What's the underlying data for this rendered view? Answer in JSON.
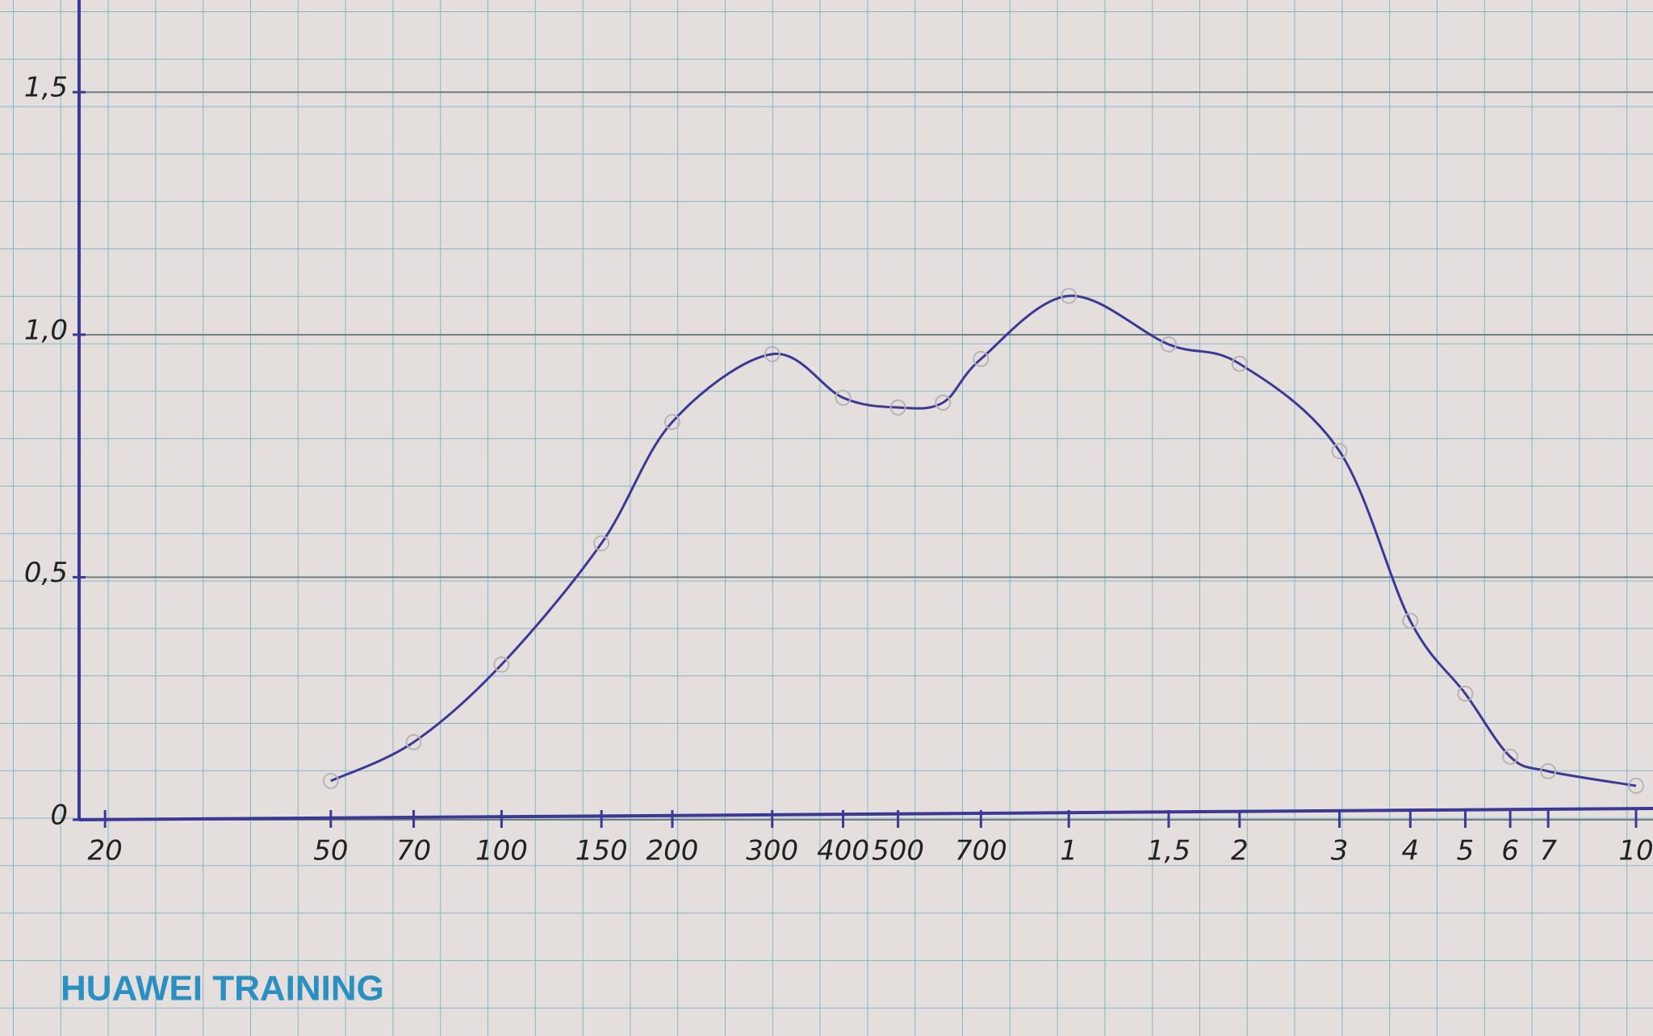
{
  "chart_data": {
    "type": "line",
    "annotation": "HUAWEI TRAINING",
    "x": [
      50,
      70,
      100,
      150,
      200,
      300,
      400,
      500,
      600,
      700,
      1000,
      1500,
      2000,
      3000,
      4000,
      5000,
      6000,
      7000,
      10000
    ],
    "series": [
      {
        "color": "#3b3896",
        "values": [
          0.08,
          0.16,
          0.32,
          0.57,
          0.82,
          0.96,
          0.87,
          0.85,
          0.86,
          0.95,
          1.08,
          0.98,
          0.94,
          0.76,
          0.41,
          0.26,
          0.13,
          0.1,
          0.07
        ]
      }
    ],
    "xscale": "log",
    "xlim": [
      18,
      10000
    ],
    "xticks": [
      20,
      50,
      70,
      100,
      150,
      200,
      300,
      400,
      500,
      700,
      {
        "value": 1000,
        "label": "1"
      },
      {
        "value": 1500,
        "label": "1,5"
      },
      {
        "value": 2000,
        "label": "2"
      },
      {
        "value": 3000,
        "label": "3"
      },
      {
        "value": 4000,
        "label": "4"
      },
      {
        "value": 5000,
        "label": "5"
      },
      {
        "value": 6000,
        "label": "6"
      },
      {
        "value": 7000,
        "label": "7"
      },
      {
        "value": 10000,
        "label": "10"
      }
    ],
    "ylim": [
      0,
      1.69
    ],
    "yticks": [
      0,
      {
        "value": 0.5,
        "label": "0,5"
      },
      {
        "value": 1,
        "label": "1,0"
      },
      {
        "value": 1.5,
        "label": "1,5"
      }
    ],
    "grid": true
  }
}
